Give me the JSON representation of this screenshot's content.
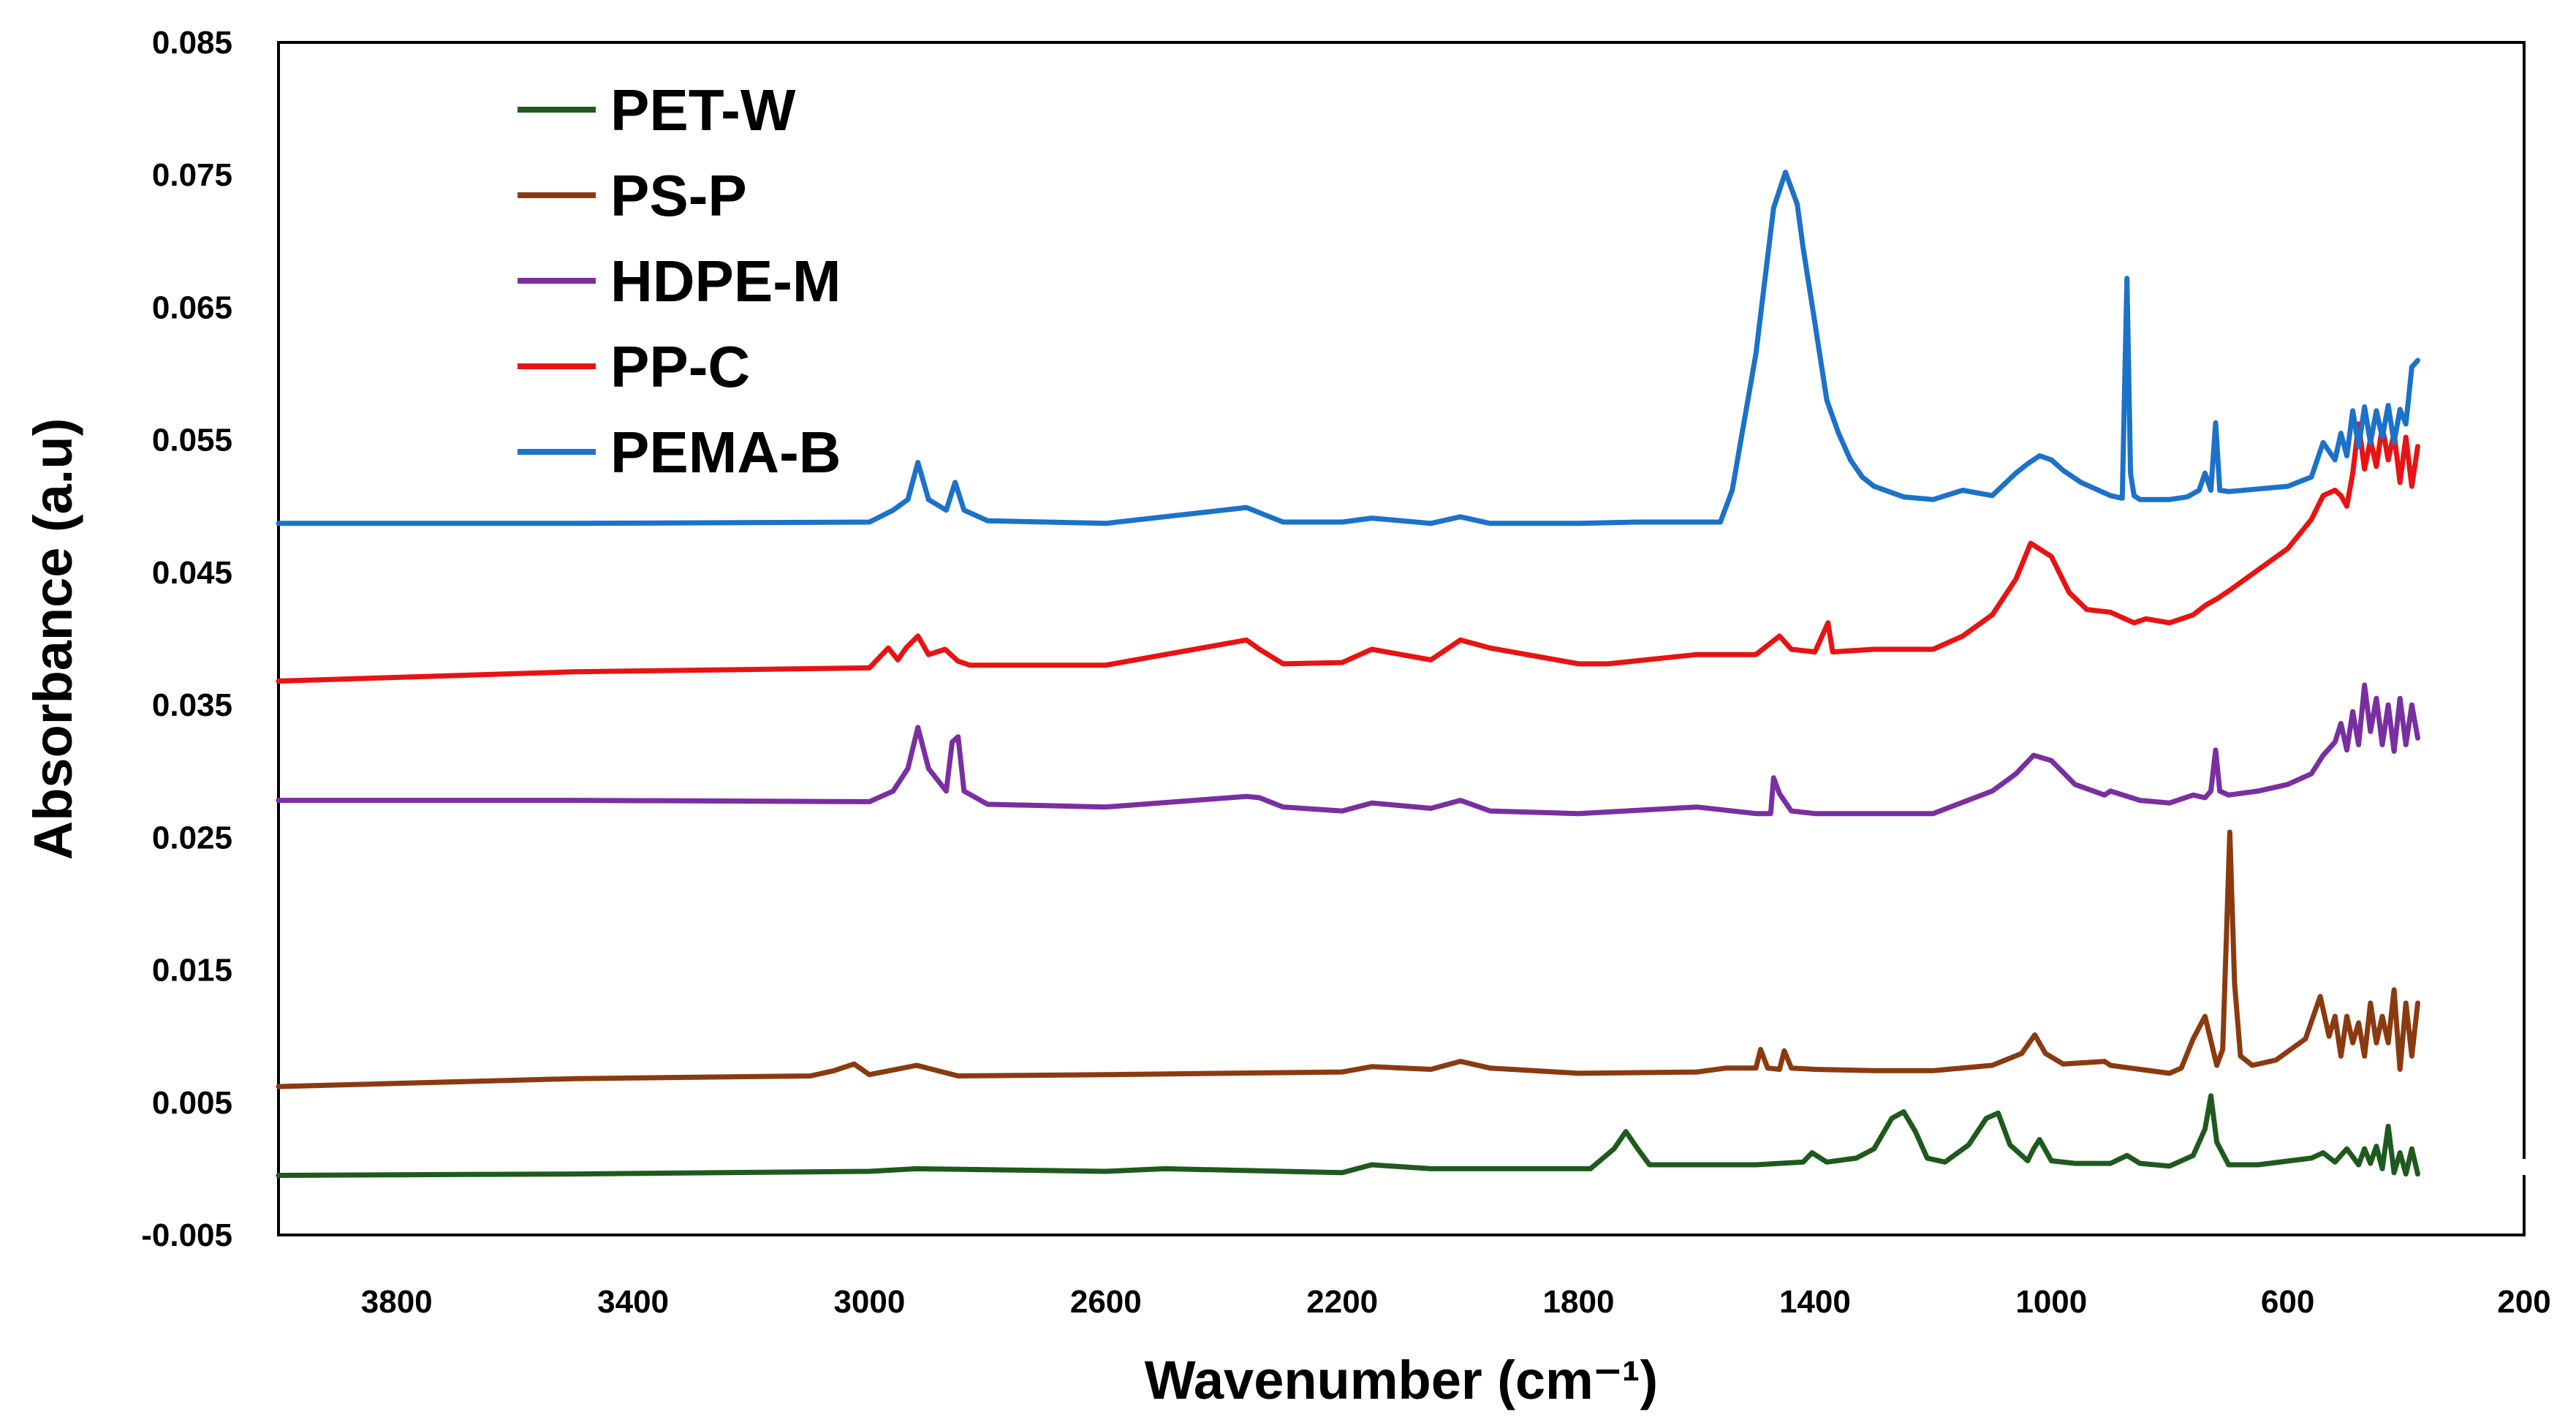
{
  "chart_data": {
    "type": "line",
    "title": "",
    "xlabel": "Wavenumber (cm⁻¹)",
    "ylabel": "Absorbance (a.u)",
    "xlim": [
      4000,
      200
    ],
    "ylim": [
      -0.005,
      0.085
    ],
    "x_reversed": true,
    "grid": false,
    "legend_position": "top-left",
    "x_ticks": [
      3800,
      3400,
      3000,
      2600,
      2200,
      1800,
      1400,
      1000,
      600,
      200
    ],
    "y_ticks": [
      -0.005,
      0.005,
      0.015,
      0.025,
      0.035,
      0.045,
      0.055,
      0.065,
      0.075,
      0.085
    ],
    "x_tick_labels": [
      "3800",
      "3400",
      "3000",
      "2600",
      "2200",
      "1800",
      "1400",
      "1000",
      "600",
      "200"
    ],
    "y_tick_labels": [
      "-0.005",
      "0.005",
      "0.015",
      "0.025",
      "0.035",
      "0.045",
      "0.055",
      "0.065",
      "0.075",
      "0.085"
    ],
    "series": [
      {
        "name": "PET-W",
        "color": "#1e5a1e",
        "x": [
          4000,
          3500,
          3000,
          2920,
          2600,
          2500,
          2200,
          2150,
          2050,
          1780,
          1740,
          1720,
          1700,
          1680,
          1500,
          1420,
          1405,
          1380,
          1330,
          1300,
          1270,
          1250,
          1230,
          1210,
          1180,
          1140,
          1110,
          1090,
          1070,
          1040,
          1030,
          1020,
          1000,
          960,
          900,
          872,
          850,
          800,
          760,
          740,
          730,
          720,
          700,
          650,
          560,
          540,
          520,
          500,
          480,
          470,
          460,
          450,
          440,
          430,
          420,
          410,
          400,
          390,
          380
        ],
        "y": [
          -0.0005,
          -0.0004,
          -0.0002,
          0.0,
          -0.0002,
          0.0,
          -0.0003,
          0.0003,
          0.0,
          0.0,
          0.0015,
          0.0028,
          0.0015,
          0.0003,
          0.0003,
          0.0005,
          0.0012,
          0.0005,
          0.0008,
          0.0015,
          0.0038,
          0.0043,
          0.0028,
          0.0008,
          0.0005,
          0.0018,
          0.0038,
          0.0042,
          0.0018,
          0.0006,
          0.0015,
          0.0022,
          0.0006,
          0.0004,
          0.0004,
          0.001,
          0.0004,
          0.0002,
          0.001,
          0.003,
          0.0055,
          0.002,
          0.0003,
          0.0003,
          0.0008,
          0.0012,
          0.0005,
          0.0015,
          0.0003,
          0.0015,
          0.0004,
          0.0017,
          0.0,
          0.0032,
          -0.0003,
          0.0012,
          -0.0004,
          0.0015,
          -0.0004
        ]
      },
      {
        "name": "PS-P",
        "color": "#8b3a10",
        "x": [
          4000,
          3500,
          3100,
          3060,
          3026,
          3000,
          2920,
          2850,
          2600,
          2200,
          2150,
          2050,
          2000,
          1950,
          1800,
          1600,
          1550,
          1500,
          1492,
          1480,
          1460,
          1452,
          1440,
          1400,
          1300,
          1200,
          1100,
          1050,
          1028,
          1010,
          980,
          910,
          900,
          850,
          800,
          780,
          760,
          740,
          720,
          710,
          698,
          690,
          680,
          660,
          620,
          570,
          545,
          530,
          520,
          510,
          500,
          490,
          480,
          470,
          460,
          450,
          440,
          430,
          420,
          410,
          400,
          390,
          380
        ],
        "y": [
          0.0062,
          0.0068,
          0.007,
          0.0074,
          0.0079,
          0.0071,
          0.0078,
          0.007,
          0.0071,
          0.0073,
          0.0077,
          0.0075,
          0.0081,
          0.0076,
          0.0072,
          0.0073,
          0.0076,
          0.0076,
          0.009,
          0.0076,
          0.0075,
          0.0089,
          0.0076,
          0.0075,
          0.0074,
          0.0074,
          0.0078,
          0.0087,
          0.0101,
          0.0087,
          0.0079,
          0.0081,
          0.0078,
          0.0075,
          0.0072,
          0.0076,
          0.0098,
          0.0115,
          0.0078,
          0.009,
          0.0254,
          0.014,
          0.0085,
          0.0078,
          0.0082,
          0.0098,
          0.013,
          0.01,
          0.0115,
          0.0085,
          0.0115,
          0.0095,
          0.011,
          0.0085,
          0.0125,
          0.0095,
          0.0115,
          0.0095,
          0.0135,
          0.0075,
          0.0125,
          0.0085,
          0.0125
        ]
      },
      {
        "name": "HDPE-M",
        "color": "#7a2fa0",
        "x": [
          4000,
          3500,
          3000,
          2960,
          2935,
          2918,
          2900,
          2870,
          2860,
          2850,
          2840,
          2800,
          2600,
          2362,
          2340,
          2300,
          2200,
          2150,
          2050,
          2000,
          1950,
          1800,
          1600,
          1500,
          1475,
          1470,
          1460,
          1440,
          1400,
          1300,
          1200,
          1100,
          1060,
          1030,
          1000,
          960,
          910,
          900,
          850,
          800,
          760,
          740,
          730,
          722,
          715,
          700,
          650,
          600,
          560,
          540,
          520,
          510,
          500,
          490,
          480,
          470,
          460,
          450,
          440,
          430,
          420,
          410,
          400,
          390,
          380
        ],
        "y": [
          0.0278,
          0.0278,
          0.0277,
          0.0285,
          0.0302,
          0.0333,
          0.0302,
          0.0285,
          0.0322,
          0.0326,
          0.0285,
          0.0275,
          0.0273,
          0.0281,
          0.028,
          0.0273,
          0.027,
          0.0276,
          0.0272,
          0.0278,
          0.027,
          0.0268,
          0.0273,
          0.0268,
          0.0268,
          0.0295,
          0.0283,
          0.027,
          0.0268,
          0.0268,
          0.0268,
          0.0285,
          0.0298,
          0.0312,
          0.0308,
          0.029,
          0.0282,
          0.0285,
          0.0278,
          0.0276,
          0.0282,
          0.028,
          0.0285,
          0.0316,
          0.0285,
          0.0282,
          0.0285,
          0.029,
          0.0298,
          0.0312,
          0.0322,
          0.0336,
          0.0316,
          0.0345,
          0.032,
          0.0365,
          0.033,
          0.0355,
          0.032,
          0.035,
          0.0315,
          0.0355,
          0.032,
          0.035,
          0.0325
        ]
      },
      {
        "name": "PP-C",
        "color": "#e81313",
        "x": [
          4000,
          3500,
          3000,
          2968,
          2952,
          2938,
          2918,
          2900,
          2872,
          2850,
          2830,
          2600,
          2362,
          2340,
          2300,
          2200,
          2150,
          2050,
          2000,
          1950,
          1800,
          1750,
          1600,
          1500,
          1460,
          1440,
          1400,
          1378,
          1370,
          1300,
          1200,
          1150,
          1100,
          1060,
          1035,
          1000,
          970,
          940,
          900,
          860,
          840,
          800,
          760,
          740,
          720,
          700,
          650,
          600,
          560,
          540,
          520,
          510,
          500,
          490,
          480,
          470,
          460,
          450,
          440,
          430,
          420,
          410,
          400,
          390,
          380
        ],
        "y": [
          0.0368,
          0.0375,
          0.0378,
          0.0393,
          0.0384,
          0.0393,
          0.0402,
          0.0388,
          0.0392,
          0.0383,
          0.038,
          0.038,
          0.0399,
          0.0392,
          0.0381,
          0.0382,
          0.0392,
          0.0384,
          0.0399,
          0.0393,
          0.0381,
          0.0381,
          0.0388,
          0.0388,
          0.0402,
          0.0392,
          0.039,
          0.0412,
          0.039,
          0.0392,
          0.0392,
          0.0402,
          0.0418,
          0.0445,
          0.0472,
          0.0462,
          0.0435,
          0.0422,
          0.042,
          0.0412,
          0.0415,
          0.0412,
          0.0418,
          0.0425,
          0.043,
          0.0436,
          0.0452,
          0.0468,
          0.049,
          0.0508,
          0.0512,
          0.0508,
          0.05,
          0.0525,
          0.0562,
          0.0528,
          0.055,
          0.053,
          0.056,
          0.0535,
          0.0555,
          0.0518,
          0.0552,
          0.0515,
          0.0545
        ]
      },
      {
        "name": "PEMA-B",
        "color": "#1b72c8",
        "x": [
          4000,
          3800,
          3500,
          3000,
          2960,
          2935,
          2918,
          2900,
          2870,
          2855,
          2840,
          2800,
          2600,
          2362,
          2340,
          2300,
          2200,
          2150,
          2050,
          2000,
          1950,
          1800,
          1700,
          1560,
          1540,
          1500,
          1470,
          1450,
          1430,
          1420,
          1400,
          1380,
          1360,
          1340,
          1320,
          1300,
          1250,
          1200,
          1150,
          1100,
          1060,
          1040,
          1020,
          1000,
          980,
          950,
          900,
          880,
          872,
          866,
          860,
          850,
          800,
          770,
          750,
          740,
          730,
          722,
          715,
          700,
          650,
          600,
          560,
          540,
          520,
          510,
          500,
          490,
          480,
          470,
          460,
          450,
          440,
          430,
          420,
          410,
          400,
          390,
          380
        ],
        "y": [
          0.0487,
          0.0487,
          0.0487,
          0.0488,
          0.0497,
          0.0505,
          0.0533,
          0.0505,
          0.0497,
          0.0518,
          0.0497,
          0.0489,
          0.0487,
          0.0499,
          0.0495,
          0.0488,
          0.0488,
          0.0491,
          0.0487,
          0.0492,
          0.0487,
          0.0487,
          0.0488,
          0.0488,
          0.0512,
          0.0615,
          0.0725,
          0.0752,
          0.0728,
          0.0695,
          0.0638,
          0.058,
          0.0555,
          0.0535,
          0.0522,
          0.0515,
          0.0507,
          0.0505,
          0.0512,
          0.0508,
          0.0525,
          0.0532,
          0.0538,
          0.0535,
          0.0527,
          0.0518,
          0.0508,
          0.0506,
          0.0672,
          0.0525,
          0.0508,
          0.0505,
          0.0505,
          0.0507,
          0.0512,
          0.0525,
          0.0512,
          0.0563,
          0.0512,
          0.0511,
          0.0513,
          0.0515,
          0.0522,
          0.0548,
          0.0535,
          0.0555,
          0.0538,
          0.0572,
          0.0545,
          0.0575,
          0.0548,
          0.0572,
          0.0552,
          0.0576,
          0.0548,
          0.0573,
          0.0562,
          0.0605,
          0.061
        ]
      }
    ]
  }
}
